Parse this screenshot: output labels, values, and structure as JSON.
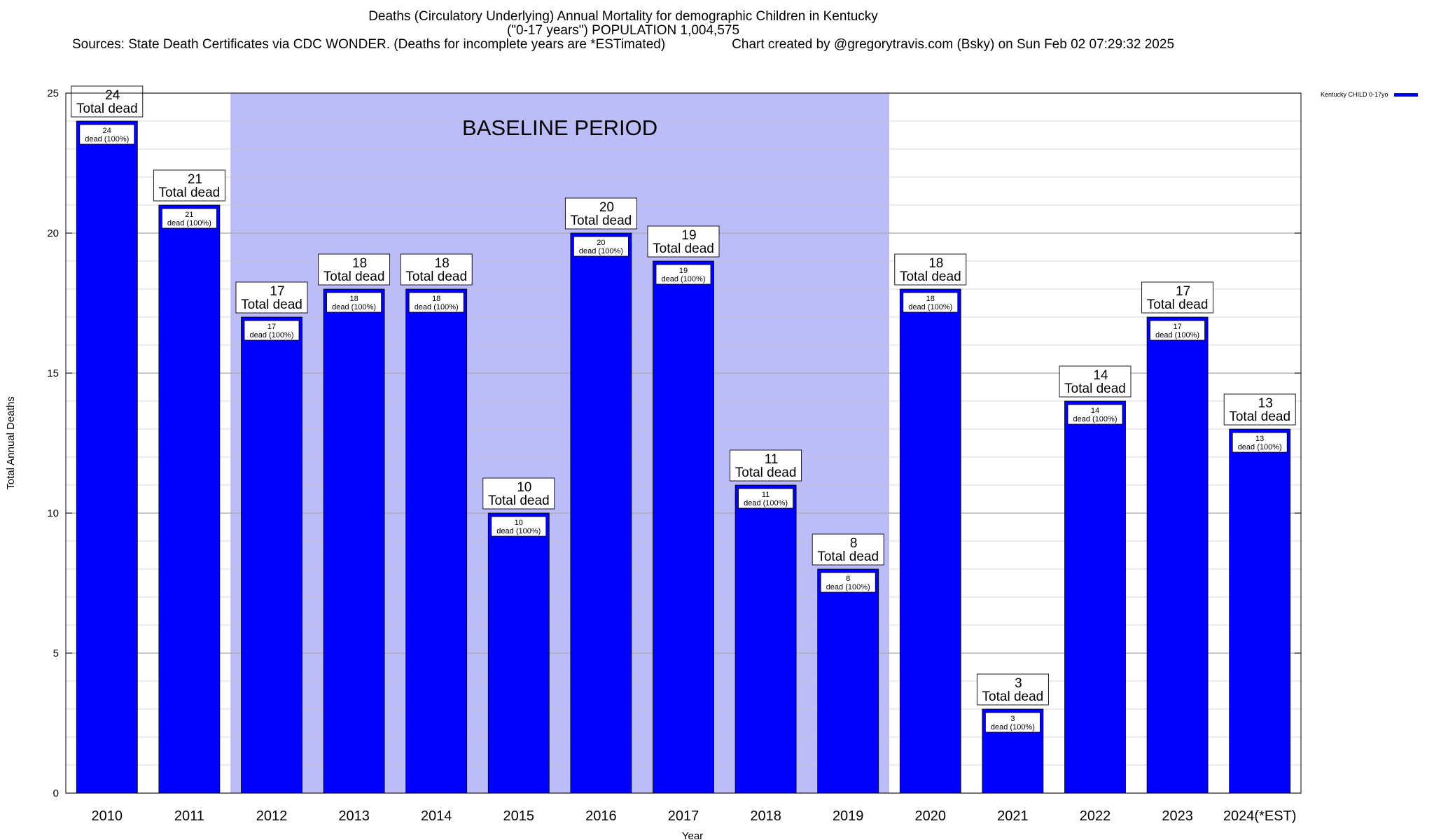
{
  "chart_data": {
    "type": "bar",
    "title": "Deaths (Circulatory Underlying) Annual Mortality for demographic Children in Kentucky",
    "subtitle": "(\"0-17 years\") POPULATION 1,004,575",
    "sources": "Sources: State Death Certificates via CDC WONDER. (Deaths for incomplete years are *ESTimated)",
    "created": "Chart created by @gregorytravis.com (Bsky) on Sun Feb 02 07:29:32 2025",
    "xlabel": "Year",
    "ylabel": "Total Annual Deaths",
    "ylim": [
      0,
      25
    ],
    "yticks": [
      "0",
      "5",
      "10",
      "15",
      "20",
      "25"
    ],
    "categories": [
      "2010",
      "2011",
      "2012",
      "2013",
      "2014",
      "2015",
      "2016",
      "2017",
      "2018",
      "2019",
      "2020",
      "2021",
      "2022",
      "2023",
      "2024(*EST)"
    ],
    "series": [
      {
        "name": "Kentucky CHILD 0-17yo",
        "values": [
          24,
          21,
          17,
          18,
          18,
          10,
          20,
          19,
          11,
          8,
          18,
          3,
          14,
          17,
          13
        ],
        "color": "#0000ff"
      }
    ],
    "total_label_suffix": "Total dead",
    "inner_label_suffix": "dead (100%)",
    "baseline": {
      "label": "BASELINE PERIOD",
      "from": "2012",
      "to": "2019",
      "color": "#bcbcf8"
    },
    "legend_position": "top-right",
    "grid": true
  }
}
